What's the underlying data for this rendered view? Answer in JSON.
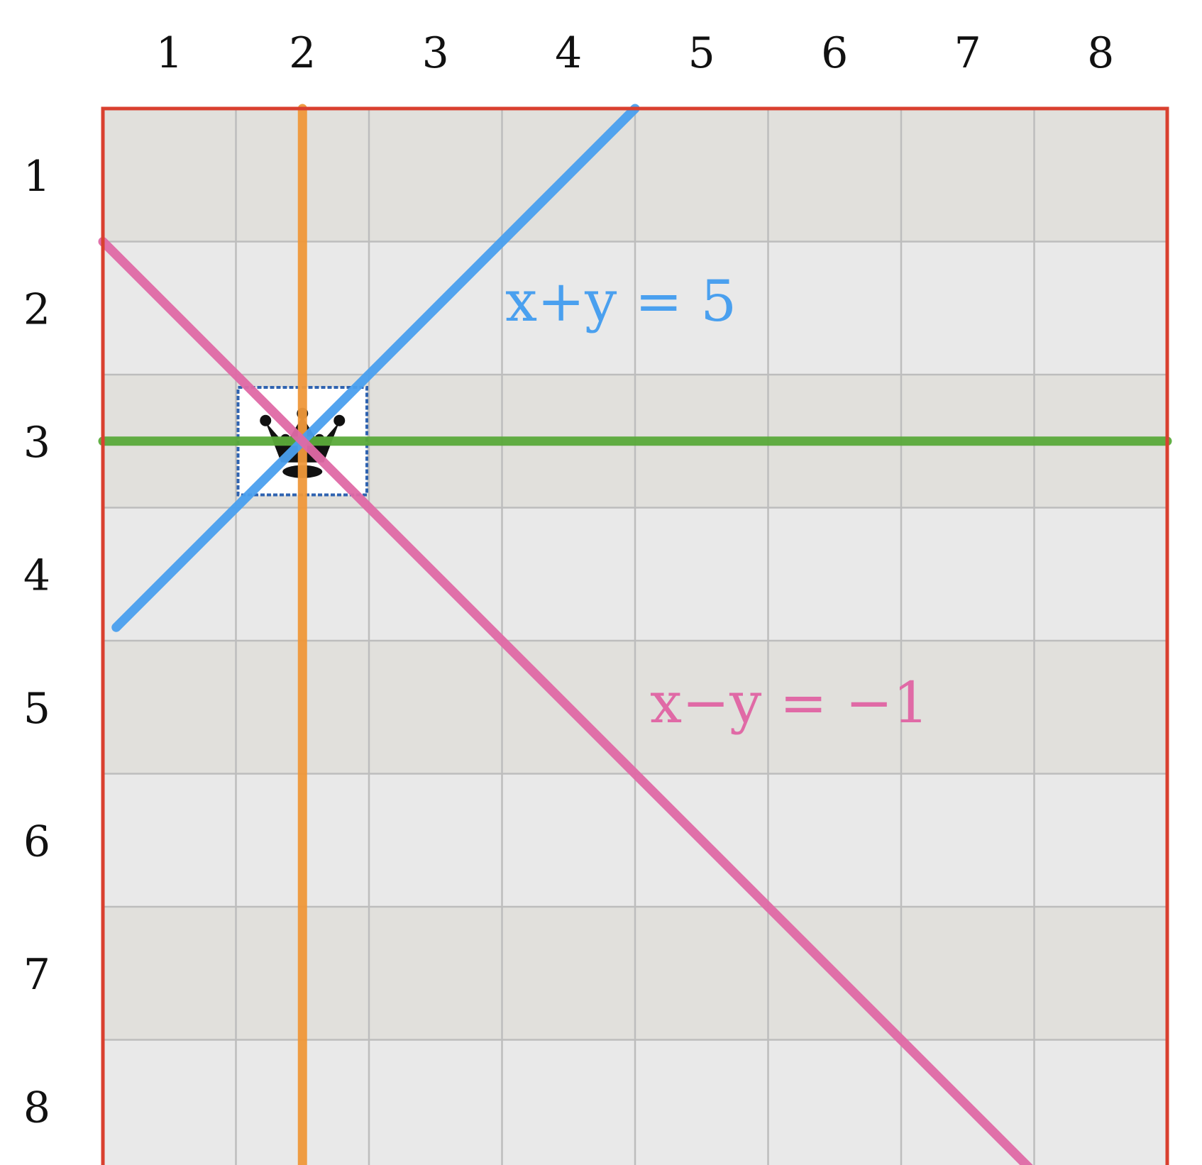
{
  "board": {
    "size": 8,
    "column_labels": [
      "1",
      "2",
      "3",
      "4",
      "5",
      "6",
      "7",
      "8"
    ],
    "row_labels": [
      "1",
      "2",
      "3",
      "4",
      "5",
      "6",
      "7",
      "8"
    ],
    "stripe_colors": {
      "odd_rows": "#e1e0dc",
      "even_rows": "#e9e9e9"
    },
    "grid_line_color": "#bdbdbd",
    "border_color": "#d9402f"
  },
  "queen": {
    "column": 2,
    "row": 3,
    "icon": "queen-crown-icon",
    "highlight_color": "#2f63b0"
  },
  "attack_lines": [
    {
      "id": "column-line",
      "color": "#f0983a",
      "from": [
        2,
        0.5
      ],
      "to": [
        2,
        8.5
      ]
    },
    {
      "id": "row-line",
      "color": "#5aaa3a",
      "from": [
        0.5,
        3
      ],
      "to": [
        8.5,
        3
      ]
    },
    {
      "id": "anti-diagonal-line",
      "color": "#4aa0ef",
      "from": [
        0.6,
        4.4
      ],
      "to": [
        4.5,
        0.5
      ]
    },
    {
      "id": "diagonal-line",
      "color": "#e06aa6",
      "from": [
        0.5,
        1.5
      ],
      "to": [
        7.5,
        8.5
      ]
    }
  ],
  "equations": {
    "sum": {
      "text": "x+y = 5",
      "color": "#4aa0ef"
    },
    "diff": {
      "text": "x−y = −1",
      "color": "#e06aa6"
    }
  }
}
